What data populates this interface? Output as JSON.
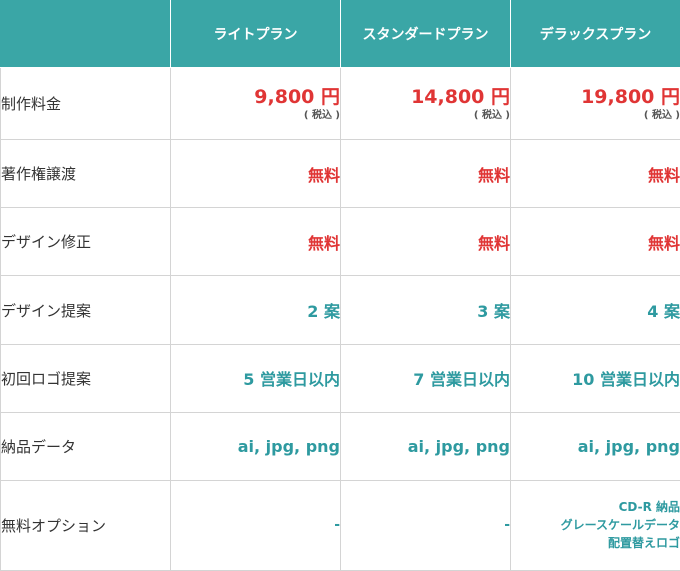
{
  "header": {
    "corner": "",
    "plans": [
      "ライトプラン",
      "スタンダードプラン",
      "デラックスプラン"
    ]
  },
  "rows": [
    {
      "label": "制作料金",
      "values": [
        "9,800 円",
        "14,800 円",
        "19,800 円"
      ],
      "note": "( 税込 )"
    },
    {
      "label": "著作権譲渡",
      "values": [
        "無料",
        "無料",
        "無料"
      ]
    },
    {
      "label": "デザイン修正",
      "values": [
        "無料",
        "無料",
        "無料"
      ]
    },
    {
      "label": "デザイン提案",
      "values": [
        "2 案",
        "3 案",
        "4 案"
      ]
    },
    {
      "label": "初回ロゴ提案",
      "values": [
        "5 営業日以内",
        "7 営業日以内",
        "10 営業日以内"
      ]
    },
    {
      "label": "納品データ",
      "values": [
        "ai, jpg, png",
        "ai, jpg, png",
        "ai, jpg, png"
      ]
    },
    {
      "label": "無料オプション",
      "values": [
        "-",
        "-"
      ],
      "deluxe_options": [
        "CD-R 納品",
        "グレースケールデータ",
        "配置替えロゴ"
      ]
    }
  ],
  "colors": {
    "header_bg": "#3aa6a6",
    "price_red": "#e03535",
    "teal_text": "#2e9aa0",
    "border": "#d4d4d4"
  }
}
